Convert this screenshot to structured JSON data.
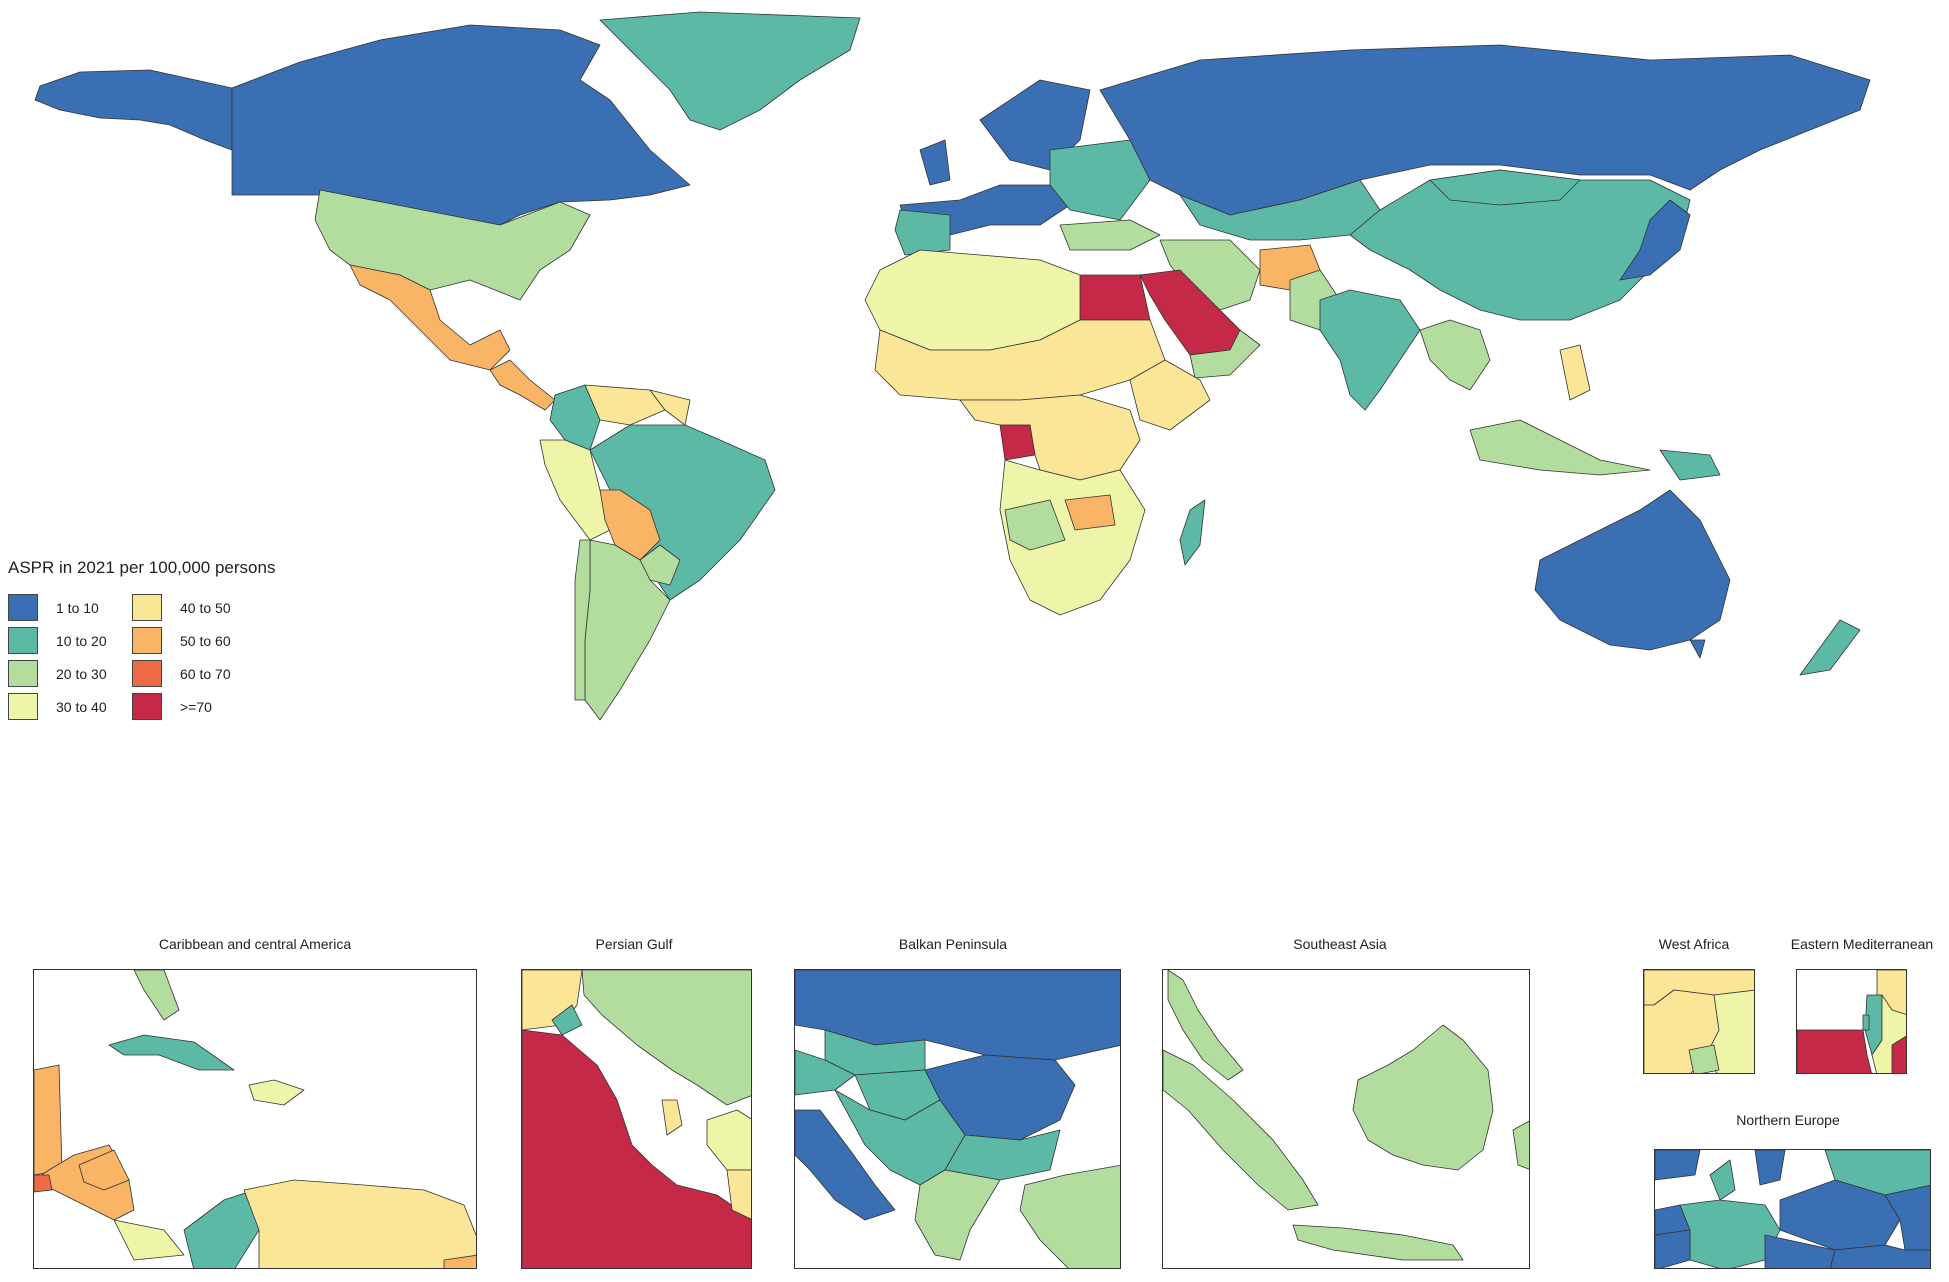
{
  "legend": {
    "title": "ASPR in 2021 per 100,000 persons",
    "items": [
      {
        "label": "1 to 10",
        "color": "#3a6fb3"
      },
      {
        "label": "10 to 20",
        "color": "#5bb9a6"
      },
      {
        "label": "20 to 30",
        "color": "#b2dd9f"
      },
      {
        "label": "30 to 40",
        "color": "#eef5a8"
      },
      {
        "label": "40 to 50",
        "color": "#fbe596"
      },
      {
        "label": "50 to 60",
        "color": "#f9b466"
      },
      {
        "label": "60 to 70",
        "color": "#ef6b45"
      },
      {
        "label": ">=70",
        "color": "#c42a47"
      }
    ]
  },
  "insets": {
    "caribbean": "Caribbean and central America",
    "persian_gulf": "Persian Gulf",
    "balkan": "Balkan Peninsula",
    "southeast_asia": "Southeast Asia",
    "west_africa": "West Africa",
    "eastern_med": "Eastern Mediterranean",
    "northern_europe": "Northern Europe"
  },
  "regions": [
    {
      "name": "Canada",
      "category": "1 to 10"
    },
    {
      "name": "Alaska",
      "category": "1 to 10"
    },
    {
      "name": "Greenland",
      "category": "10 to 20"
    },
    {
      "name": "United States",
      "category": "20 to 30"
    },
    {
      "name": "Mexico",
      "category": "50 to 60"
    },
    {
      "name": "Brazil",
      "category": "10 to 20"
    },
    {
      "name": "Bolivia",
      "category": "50 to 60"
    },
    {
      "name": "Russia",
      "category": "1 to 10"
    },
    {
      "name": "China",
      "category": "10 to 20"
    },
    {
      "name": "India",
      "category": "10 to 20"
    },
    {
      "name": "Egypt",
      "category": ">=70"
    },
    {
      "name": "Saudi Arabia",
      "category": ">=70"
    },
    {
      "name": "Gabon",
      "category": ">=70"
    },
    {
      "name": "Afghanistan",
      "category": "50 to 60"
    },
    {
      "name": "Australia",
      "category": "1 to 10"
    },
    {
      "name": "Japan",
      "category": "1 to 10"
    },
    {
      "name": "New Zealand",
      "category": "10 to 20"
    },
    {
      "name": "Madagascar",
      "category": "10 to 20"
    },
    {
      "name": "Papua New Guinea",
      "category": "10 to 20"
    }
  ]
}
